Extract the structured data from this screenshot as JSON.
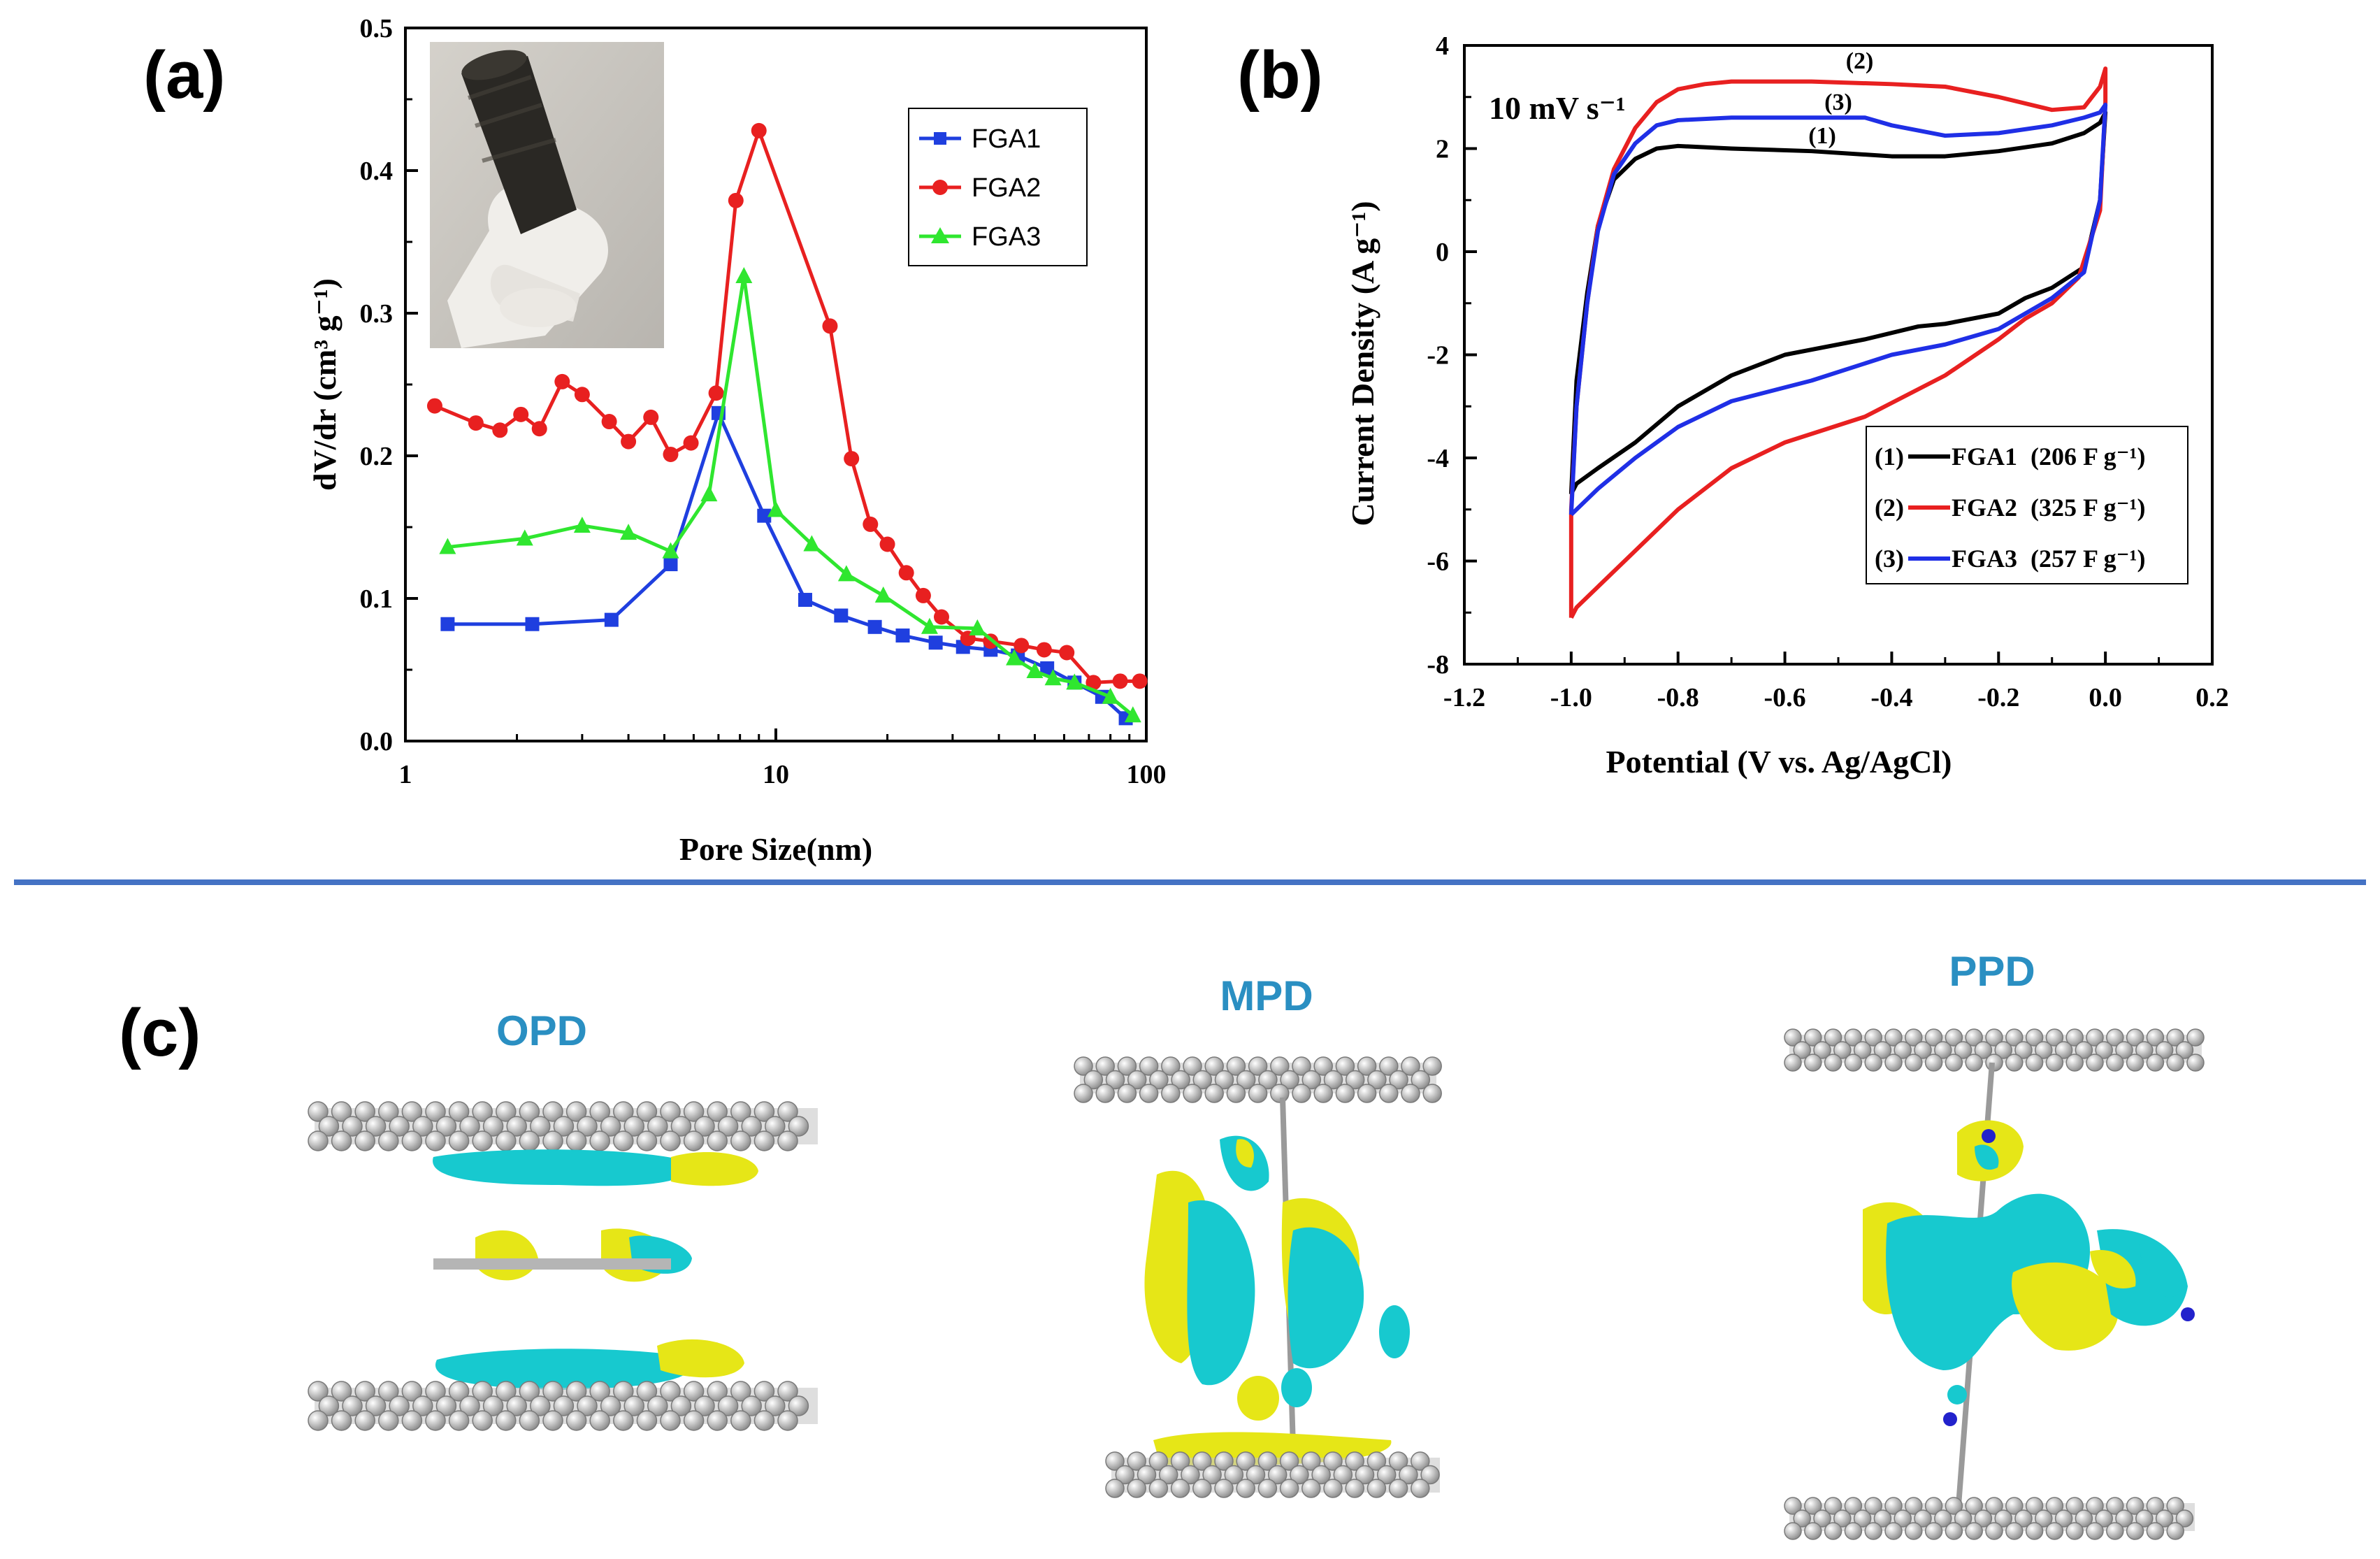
{
  "panels": {
    "a": "(a)",
    "b": "(b)",
    "c": "(c)"
  },
  "colors": {
    "FGA1_a": "#1f3fdf",
    "FGA2_a": "#e82020",
    "FGA3_a": "#2fe62f",
    "FGA1_b": "#000000",
    "FGA2_b": "#e82020",
    "FGA3_b": "#1f2fe6",
    "divider": "#4472c4",
    "mol_label": "#2a8fc2",
    "isosurface_cyan": "#17c9cf",
    "isosurface_yellow": "#e6e617"
  },
  "chart_data": [
    {
      "type": "line",
      "panel": "a",
      "xlabel": "Pore Size(nm)",
      "ylabel": "dV/dr (cm³ g⁻¹)",
      "xscale": "log",
      "xlim": [
        1,
        100
      ],
      "ylim": [
        0,
        0.5
      ],
      "xticks": [
        1,
        10,
        100
      ],
      "xtick_labels": [
        "1",
        "10",
        "100"
      ],
      "yticks": [
        0.0,
        0.1,
        0.2,
        0.3,
        0.4,
        0.5
      ],
      "ytick_labels": [
        "0.0",
        "0.1",
        "0.2",
        "0.3",
        "0.4",
        "0.5"
      ],
      "legend_position": "top-right",
      "legend": [
        "FGA1",
        "FGA2",
        "FGA3"
      ],
      "series": [
        {
          "name": "FGA1",
          "marker": "square",
          "x": [
            1.3,
            2.2,
            3.6,
            5.2,
            7.0,
            9.3,
            12.0,
            15.0,
            18.5,
            22.0,
            27.0,
            32.0,
            38.0,
            45.0,
            54.0,
            64.0,
            76.0,
            88.0
          ],
          "y": [
            0.082,
            0.082,
            0.085,
            0.124,
            0.23,
            0.158,
            0.099,
            0.088,
            0.08,
            0.074,
            0.069,
            0.066,
            0.064,
            0.06,
            0.051,
            0.041,
            0.031,
            0.016
          ]
        },
        {
          "name": "FGA2",
          "marker": "circle",
          "x": [
            1.2,
            1.55,
            1.8,
            2.05,
            2.3,
            2.65,
            3.0,
            3.55,
            4.0,
            4.6,
            5.2,
            5.9,
            6.9,
            7.8,
            9.0,
            14.0,
            16.0,
            18.0,
            20.0,
            22.5,
            25.0,
            28.0,
            33.0,
            38.0,
            46.0,
            53.0,
            61.0,
            72.0,
            85.0,
            96.0
          ],
          "y": [
            0.235,
            0.223,
            0.218,
            0.229,
            0.219,
            0.252,
            0.243,
            0.224,
            0.21,
            0.227,
            0.201,
            0.209,
            0.244,
            0.379,
            0.428,
            0.291,
            0.198,
            0.152,
            0.138,
            0.118,
            0.102,
            0.087,
            0.072,
            0.07,
            0.067,
            0.064,
            0.062,
            0.041,
            0.042,
            0.042
          ]
        },
        {
          "name": "FGA3",
          "marker": "triangle",
          "x": [
            1.3,
            2.1,
            3.0,
            4.0,
            5.2,
            6.6,
            8.2,
            10.0,
            12.5,
            15.5,
            19.5,
            26.0,
            35.0,
            44.0,
            50.0,
            56.0,
            64.0,
            80.0,
            92.0
          ],
          "y": [
            0.136,
            0.142,
            0.151,
            0.146,
            0.133,
            0.173,
            0.326,
            0.162,
            0.138,
            0.117,
            0.102,
            0.08,
            0.079,
            0.058,
            0.049,
            0.044,
            0.041,
            0.031,
            0.018
          ]
        }
      ]
    },
    {
      "type": "line",
      "panel": "b",
      "xlabel": "Potential (V vs. Ag/AgCl)",
      "ylabel": "Current Density (A g⁻¹)",
      "xlim": [
        -1.2,
        0.2
      ],
      "ylim": [
        -8,
        4
      ],
      "xticks": [
        -1.2,
        -1.0,
        -0.8,
        -0.6,
        -0.4,
        -0.2,
        0.0,
        0.2
      ],
      "xtick_labels": [
        "-1.2",
        "-1.0",
        "-0.8",
        "-0.6",
        "-0.4",
        "-0.2",
        "0.0",
        "0.2"
      ],
      "yticks": [
        -8,
        -6,
        -4,
        -2,
        0,
        2,
        4
      ],
      "ytick_labels": [
        "-8",
        "-6",
        "-4",
        "-2",
        "0",
        "2",
        "4"
      ],
      "annotation": "10 mV s⁻¹",
      "legend_position": "bottom-right",
      "legend": [
        {
          "id": "(1)",
          "name": "FGA1",
          "value": "(206 F g⁻¹)"
        },
        {
          "id": "(2)",
          "name": "FGA2",
          "value": "(325 F g⁻¹)"
        },
        {
          "id": "(3)",
          "name": "FGA3",
          "value": "(257 F g⁻¹)"
        }
      ],
      "curve_labels": [
        {
          "text": "(1)",
          "x": -0.53,
          "y": 2.1
        },
        {
          "text": "(2)",
          "x": -0.46,
          "y": 3.55
        },
        {
          "text": "(3)",
          "x": -0.5,
          "y": 2.75
        }
      ],
      "series": [
        {
          "name": "FGA1",
          "x": [
            -1.0,
            -0.99,
            -0.97,
            -0.95,
            -0.92,
            -0.88,
            -0.84,
            -0.8,
            -0.7,
            -0.55,
            -0.4,
            -0.3,
            -0.2,
            -0.1,
            -0.04,
            -0.01,
            0.0,
            -0.01,
            -0.04,
            -0.1,
            -0.15,
            -0.2,
            -0.3,
            -0.35,
            -0.45,
            -0.6,
            -0.7,
            -0.8,
            -0.88,
            -0.95,
            -0.99,
            -1.0
          ],
          "y": [
            -4.7,
            -2.5,
            -0.8,
            0.5,
            1.4,
            1.8,
            2.0,
            2.05,
            2.0,
            1.95,
            1.85,
            1.85,
            1.95,
            2.1,
            2.3,
            2.5,
            2.7,
            1.0,
            -0.3,
            -0.7,
            -0.9,
            -1.2,
            -1.4,
            -1.45,
            -1.7,
            -2.0,
            -2.4,
            -3.0,
            -3.7,
            -4.2,
            -4.5,
            -4.7
          ]
        },
        {
          "name": "FGA2",
          "x": [
            -1.0,
            -1.0,
            -0.99,
            -0.97,
            -0.95,
            -0.92,
            -0.88,
            -0.84,
            -0.8,
            -0.75,
            -0.7,
            -0.55,
            -0.4,
            -0.3,
            -0.2,
            -0.1,
            -0.04,
            -0.01,
            0.0,
            0.0,
            -0.01,
            -0.05,
            -0.1,
            -0.15,
            -0.2,
            -0.3,
            -0.45,
            -0.6,
            -0.7,
            -0.8,
            -0.88,
            -0.95,
            -0.99,
            -1.0
          ],
          "y": [
            -7.1,
            -5.0,
            -3.0,
            -1.0,
            0.5,
            1.6,
            2.4,
            2.9,
            3.15,
            3.25,
            3.3,
            3.3,
            3.25,
            3.2,
            3.0,
            2.75,
            2.8,
            3.2,
            3.55,
            2.9,
            0.8,
            -0.5,
            -1.0,
            -1.3,
            -1.7,
            -2.4,
            -3.2,
            -3.7,
            -4.2,
            -5.0,
            -5.8,
            -6.5,
            -6.9,
            -7.1
          ]
        },
        {
          "name": "FGA3",
          "x": [
            -1.0,
            -0.99,
            -0.97,
            -0.95,
            -0.92,
            -0.88,
            -0.84,
            -0.8,
            -0.7,
            -0.55,
            -0.45,
            -0.4,
            -0.3,
            -0.2,
            -0.1,
            -0.04,
            -0.01,
            0.0,
            -0.01,
            -0.04,
            -0.1,
            -0.15,
            -0.2,
            -0.3,
            -0.4,
            -0.55,
            -0.7,
            -0.8,
            -0.88,
            -0.95,
            -0.99,
            -1.0
          ],
          "y": [
            -5.1,
            -3.0,
            -1.0,
            0.4,
            1.5,
            2.1,
            2.45,
            2.55,
            2.6,
            2.6,
            2.6,
            2.45,
            2.25,
            2.3,
            2.45,
            2.6,
            2.7,
            2.85,
            1.0,
            -0.4,
            -0.9,
            -1.2,
            -1.5,
            -1.8,
            -2.0,
            -2.5,
            -2.9,
            -3.4,
            -4.0,
            -4.6,
            -5.0,
            -5.1
          ]
        }
      ]
    }
  ],
  "molecules": {
    "opd": "OPD",
    "mpd": "MPD",
    "ppd": "PPD"
  }
}
